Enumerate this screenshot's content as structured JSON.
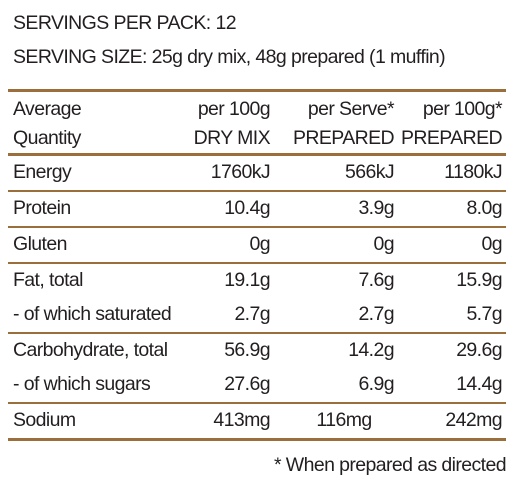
{
  "header": {
    "servings": "SERVINGS PER PACK: 12",
    "serving_size": "SERVING SIZE: 25g dry mix, 48g prepared (1 muffin)"
  },
  "table": {
    "columns": [
      {
        "line1": "Average",
        "line2": "Quantity"
      },
      {
        "line1": "per 100g",
        "line2": "DRY MIX"
      },
      {
        "line1": "per Serve*",
        "line2": "PREPARED"
      },
      {
        "line1": "per 100g*",
        "line2": "PREPARED"
      }
    ],
    "rows": [
      {
        "label": "Energy",
        "dry_100g": "1760kJ",
        "serve": "566kJ",
        "prep_100g": "1180kJ"
      },
      {
        "label": "Protein",
        "dry_100g": "10.4g",
        "serve": "3.9g",
        "prep_100g": "8.0g"
      },
      {
        "label": "Gluten",
        "dry_100g": "0g",
        "serve": "0g",
        "prep_100g": "0g"
      },
      {
        "label": "Fat, total",
        "dry_100g": "19.1g",
        "serve": "7.6g",
        "prep_100g": "15.9g"
      },
      {
        "label": "- of which saturated",
        "dry_100g": "2.7g",
        "serve": "2.7g",
        "prep_100g": "5.7g"
      },
      {
        "label": "Carbohydrate, total",
        "dry_100g": "56.9g",
        "serve": "14.2g",
        "prep_100g": "29.6g"
      },
      {
        "label": "- of which sugars",
        "dry_100g": "27.6g",
        "serve": "6.9g",
        "prep_100g": "14.4g"
      },
      {
        "label": "Sodium",
        "dry_100g": "413mg",
        "serve": "116mg",
        "prep_100g": "242mg"
      }
    ]
  },
  "footnote": "* When prepared as directed",
  "colors": {
    "rule": "#9b6f3c",
    "text": "#231f20"
  }
}
